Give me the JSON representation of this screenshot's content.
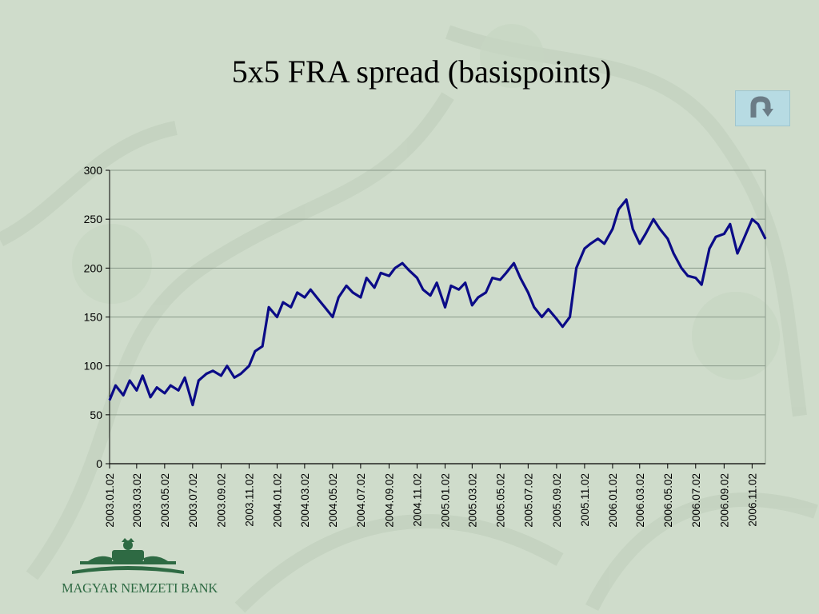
{
  "slide": {
    "title": "5x5 FRA spread (basispoints)",
    "back_icon": "u-turn-back-arrow-icon",
    "logo_text": "MAGYAR NEMZETI BANK",
    "logo_icon": "crown-building-emblem-icon"
  },
  "colors": {
    "background": "#cfdccb",
    "line": "#0b0b87",
    "grid": "#8a9a8a",
    "back_button": "#b7dbe3",
    "logo": "#2e6a43"
  },
  "chart_data": {
    "type": "line",
    "title": "",
    "xlabel": "",
    "ylabel": "",
    "ylim": [
      0,
      300
    ],
    "yticks": [
      0,
      50,
      100,
      150,
      200,
      250,
      300
    ],
    "xticks": [
      "2003.01.02",
      "2003.03.02",
      "2003.05.02",
      "2003.07.02",
      "2003.09.02",
      "2003.11.02",
      "2004.01.02",
      "2004.03.02",
      "2004.05.02",
      "2004.07.02",
      "2004.09.02",
      "2004.11.02",
      "2005.01.02",
      "2005.03.02",
      "2005.05.02",
      "2005.07.02",
      "2005.09.02",
      "2005.11.02",
      "2006.01.02",
      "2006.03.02",
      "2006.05.02",
      "2006.07.02",
      "2006.09.02",
      "2006.11.02"
    ],
    "grid": true,
    "legend": "none",
    "series": [
      {
        "x": [
          "2003.01.02",
          "2003.01.15",
          "2003.02.01",
          "2003.02.15",
          "2003.03.02",
          "2003.03.15",
          "2003.04.01",
          "2003.04.15",
          "2003.05.02",
          "2003.05.15",
          "2003.06.01",
          "2003.06.15",
          "2003.07.02",
          "2003.07.15",
          "2003.08.01",
          "2003.08.15",
          "2003.09.02",
          "2003.09.15",
          "2003.10.01",
          "2003.10.15",
          "2003.11.02",
          "2003.11.15",
          "2003.12.01",
          "2003.12.15",
          "2004.01.02",
          "2004.01.15",
          "2004.02.01",
          "2004.02.15",
          "2004.03.02",
          "2004.03.15",
          "2004.04.01",
          "2004.04.15",
          "2004.05.02",
          "2004.05.15",
          "2004.06.01",
          "2004.06.15",
          "2004.07.02",
          "2004.07.15",
          "2004.08.01",
          "2004.08.15",
          "2004.09.02",
          "2004.09.15",
          "2004.10.01",
          "2004.10.15",
          "2004.11.02",
          "2004.11.15",
          "2004.12.01",
          "2004.12.15",
          "2005.01.02",
          "2005.01.15",
          "2005.02.01",
          "2005.02.15",
          "2005.03.02",
          "2005.03.15",
          "2005.04.01",
          "2005.04.15",
          "2005.05.02",
          "2005.05.15",
          "2005.06.01",
          "2005.06.15",
          "2005.07.02",
          "2005.07.15",
          "2005.08.01",
          "2005.08.15",
          "2005.09.02",
          "2005.09.15",
          "2005.10.01",
          "2005.10.15",
          "2005.11.02",
          "2005.11.15",
          "2005.12.01",
          "2005.12.15",
          "2006.01.02",
          "2006.01.15",
          "2006.02.01",
          "2006.02.15",
          "2006.03.02",
          "2006.03.15",
          "2006.04.01",
          "2006.04.15",
          "2006.05.02",
          "2006.05.15",
          "2006.06.01",
          "2006.06.15",
          "2006.07.02",
          "2006.07.15",
          "2006.08.01",
          "2006.08.15",
          "2006.09.02",
          "2006.09.15",
          "2006.10.01",
          "2006.10.15",
          "2006.11.02",
          "2006.11.15",
          "2006.12.01"
        ],
        "values": [
          65,
          80,
          70,
          85,
          75,
          90,
          68,
          78,
          72,
          80,
          75,
          88,
          60,
          85,
          92,
          95,
          90,
          100,
          88,
          92,
          100,
          115,
          120,
          160,
          150,
          165,
          160,
          175,
          170,
          178,
          168,
          160,
          150,
          170,
          182,
          175,
          170,
          190,
          180,
          195,
          192,
          200,
          205,
          198,
          190,
          178,
          172,
          185,
          160,
          182,
          178,
          185,
          162,
          170,
          175,
          190,
          188,
          195,
          205,
          190,
          175,
          160,
          150,
          158,
          148,
          140,
          150,
          200,
          220,
          225,
          230,
          225,
          240,
          260,
          270,
          240,
          225,
          235,
          250,
          240,
          230,
          215,
          200,
          192,
          190,
          183,
          220,
          232,
          235,
          245,
          215,
          230,
          250,
          245,
          230
        ]
      }
    ]
  }
}
